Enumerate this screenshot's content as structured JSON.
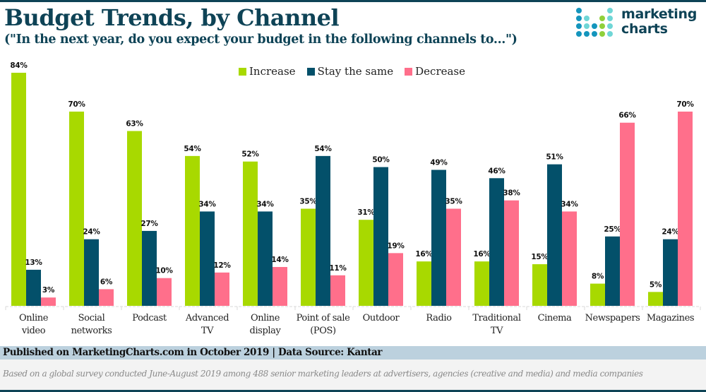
{
  "header": {
    "title": "Budget Trends, by Channel",
    "subtitle": "(\"In the next year, do you expect your budget in the following channels to...\")"
  },
  "logo": {
    "line1": "marketing",
    "line2": "charts",
    "colors": {
      "dark": "#1495bd",
      "light": "#6fd6d6",
      "green": "#8fd03a"
    }
  },
  "footer": {
    "published": "Published on MarketingCharts.com in October 2019 | Data Source: Kantar",
    "note": "Based on a global survey conducted June-August 2019 among 488 senior marketing leaders  at advertisers, agencies (creative and media) and media companies"
  },
  "chart_data": {
    "type": "bar",
    "title": "Budget Trends, by Channel",
    "subtitle": "(\"In the next year, do you expect your budget in the following channels to...\")",
    "xlabel": "",
    "ylabel": "",
    "ylim": [
      0,
      100
    ],
    "grid": false,
    "legend_position": "top-center",
    "value_suffix": "%",
    "categories": [
      [
        "Online",
        "video"
      ],
      [
        "Social",
        "networks"
      ],
      [
        "Podcast"
      ],
      [
        "Advanced",
        "TV"
      ],
      [
        "Online",
        "display"
      ],
      [
        "Point of sale",
        "(POS)"
      ],
      [
        "Outdoor"
      ],
      [
        "Radio"
      ],
      [
        "Traditional",
        "TV"
      ],
      [
        "Cinema"
      ],
      [
        "Newspapers"
      ],
      [
        "Magazines"
      ]
    ],
    "series": [
      {
        "name": "Increase",
        "color": "#a8d900",
        "values": [
          84,
          70,
          63,
          54,
          52,
          35,
          31,
          16,
          16,
          15,
          8,
          5
        ]
      },
      {
        "name": "Stay the same",
        "color": "#03506a",
        "values": [
          13,
          24,
          27,
          34,
          34,
          54,
          50,
          49,
          46,
          51,
          25,
          24
        ]
      },
      {
        "name": "Decrease",
        "color": "#ff6f8b",
        "values": [
          3,
          6,
          10,
          12,
          14,
          11,
          19,
          35,
          38,
          34,
          66,
          70
        ]
      }
    ]
  }
}
